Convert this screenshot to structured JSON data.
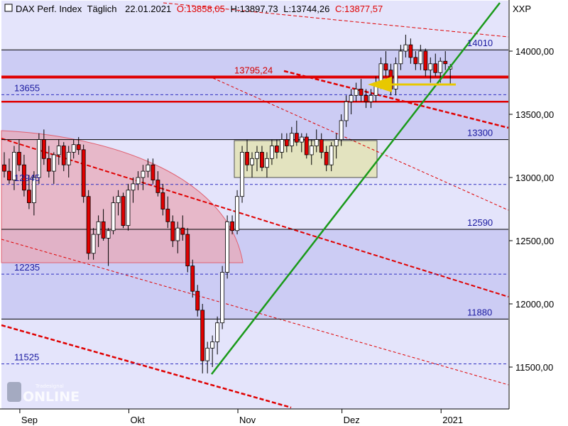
{
  "header": {
    "instrument": "DAX Perf. Index",
    "interval": "Täglich",
    "date": "22.01.2021",
    "open": "O:13858,05",
    "high": "H:13897,73",
    "low": "L:13744,26",
    "close": "C:13877,57",
    "symbol": "XXP"
  },
  "watermark": {
    "small": "Tradesignal",
    "big": "ONLINE"
  },
  "colors": {
    "band": "#ccccf4",
    "band_alt": "#e4e4fb",
    "up_candle": "#ffffff",
    "down_candle": "#e00000",
    "trend": "#1a9a1a",
    "resistance": "#e00000",
    "arrow": "#e8c800",
    "box": "#e2e2b8",
    "arc": "#e8aab8"
  },
  "chart_data": {
    "type": "candlestick",
    "title": "DAX Perf. Index Täglich",
    "ylim": [
      11150,
      14400
    ],
    "y_ticks": [
      11500,
      12000,
      12500,
      13000,
      13500,
      14000
    ],
    "y_tick_labels": [
      "11500,00",
      "12000,00",
      "12500,00",
      "13000,00",
      "13500,00",
      "14000,00"
    ],
    "x_ticks": [
      "Sep",
      "Okt",
      "Nov",
      "Dez",
      "2021"
    ],
    "x_tick_index": [
      4,
      26,
      48,
      69,
      89
    ],
    "levels": [
      {
        "value": 14010,
        "label": "14010",
        "style": "solid"
      },
      {
        "value": 13795.24,
        "label": "13795,24",
        "style": "resistance"
      },
      {
        "value": 13655,
        "label": "13655",
        "style": "dashed"
      },
      {
        "value": 13600,
        "label": "",
        "style": "resistance"
      },
      {
        "value": 13300,
        "label": "13300",
        "style": "solid"
      },
      {
        "value": 12945,
        "label": "12945",
        "style": "dashed"
      },
      {
        "value": 12590,
        "label": "12590",
        "style": "solid"
      },
      {
        "value": 12235,
        "label": "12235",
        "style": "dashed"
      },
      {
        "value": 11880,
        "label": "11880",
        "style": "solid"
      },
      {
        "value": 11525,
        "label": "11525",
        "style": "dashed"
      }
    ],
    "candles": [
      [
        13100,
        13200,
        13000,
        13050
      ],
      [
        13050,
        13150,
        12950,
        12980
      ],
      [
        12980,
        13250,
        12900,
        13200
      ],
      [
        13200,
        13300,
        13050,
        13100
      ],
      [
        13100,
        13180,
        12850,
        12900
      ],
      [
        12900,
        13020,
        12750,
        12800
      ],
      [
        12800,
        13050,
        12700,
        13000
      ],
      [
        13000,
        13350,
        12950,
        13300
      ],
      [
        13300,
        13380,
        13100,
        13150
      ],
      [
        13150,
        13250,
        13000,
        13050
      ],
      [
        13050,
        13200,
        12950,
        13180
      ],
      [
        13180,
        13300,
        13100,
        13250
      ],
      [
        13250,
        13280,
        13050,
        13100
      ],
      [
        13100,
        13250,
        13000,
        13200
      ],
      [
        13200,
        13300,
        13150,
        13260
      ],
      [
        13260,
        13320,
        13180,
        13220
      ],
      [
        13220,
        13260,
        12800,
        12850
      ],
      [
        12850,
        12900,
        12350,
        12400
      ],
      [
        12400,
        12600,
        12350,
        12550
      ],
      [
        12550,
        12700,
        12450,
        12650
      ],
      [
        12650,
        12750,
        12500,
        12520
      ],
      [
        12520,
        12600,
        12300,
        12580
      ],
      [
        12580,
        12850,
        12550,
        12800
      ],
      [
        12800,
        12900,
        12700,
        12850
      ],
      [
        12850,
        12880,
        12600,
        12620
      ],
      [
        12620,
        12950,
        12580,
        12900
      ],
      [
        12900,
        13000,
        12800,
        12950
      ],
      [
        12950,
        13050,
        12900,
        13000
      ],
      [
        13000,
        13100,
        12900,
        13050
      ],
      [
        13050,
        13150,
        13000,
        13100
      ],
      [
        13100,
        13150,
        12950,
        12980
      ],
      [
        12980,
        13050,
        12850,
        12880
      ],
      [
        12880,
        12950,
        12700,
        12750
      ],
      [
        12750,
        12850,
        12600,
        12650
      ],
      [
        12650,
        12700,
        12450,
        12500
      ],
      [
        12500,
        12650,
        12400,
        12600
      ],
      [
        12600,
        12700,
        12500,
        12550
      ],
      [
        12550,
        12600,
        12250,
        12300
      ],
      [
        12300,
        12350,
        12050,
        12100
      ],
      [
        12100,
        12150,
        11900,
        11950
      ],
      [
        11950,
        12000,
        11450,
        11550
      ],
      [
        11550,
        11700,
        11450,
        11650
      ],
      [
        11650,
        11750,
        11500,
        11700
      ],
      [
        11700,
        11900,
        11600,
        11850
      ],
      [
        11850,
        12300,
        11800,
        12250
      ],
      [
        12250,
        12700,
        12200,
        12650
      ],
      [
        12650,
        12700,
        12550,
        12580
      ],
      [
        12580,
        12900,
        12550,
        12850
      ],
      [
        12850,
        13250,
        12800,
        13200
      ],
      [
        13200,
        13300,
        13050,
        13100
      ],
      [
        13100,
        13200,
        13000,
        13150
      ],
      [
        13150,
        13250,
        13050,
        13200
      ],
      [
        13200,
        13250,
        13050,
        13080
      ],
      [
        13080,
        13200,
        13000,
        13150
      ],
      [
        13150,
        13300,
        13100,
        13250
      ],
      [
        13250,
        13300,
        13150,
        13200
      ],
      [
        13200,
        13350,
        13150,
        13300
      ],
      [
        13300,
        13350,
        13200,
        13250
      ],
      [
        13250,
        13400,
        13200,
        13350
      ],
      [
        13350,
        13450,
        13250,
        13280
      ],
      [
        13280,
        13350,
        13200,
        13320
      ],
      [
        13320,
        13350,
        13150,
        13180
      ],
      [
        13180,
        13300,
        13100,
        13250
      ],
      [
        13250,
        13380,
        13200,
        13300
      ],
      [
        13300,
        13350,
        13150,
        13200
      ],
      [
        13200,
        13250,
        13050,
        13100
      ],
      [
        13100,
        13280,
        13050,
        13250
      ],
      [
        13250,
        13350,
        13150,
        13300
      ],
      [
        13300,
        13500,
        13250,
        13450
      ],
      [
        13450,
        13650,
        13400,
        13600
      ],
      [
        13600,
        13700,
        13500,
        13650
      ],
      [
        13650,
        13750,
        13600,
        13700
      ],
      [
        13700,
        13780,
        13600,
        13650
      ],
      [
        13650,
        13700,
        13550,
        13600
      ],
      [
        13600,
        13700,
        13550,
        13650
      ],
      [
        13650,
        13800,
        13600,
        13750
      ],
      [
        13750,
        13950,
        13700,
        13900
      ],
      [
        13900,
        14000,
        13800,
        13850
      ],
      [
        13850,
        13900,
        13650,
        13700
      ],
      [
        13700,
        13950,
        13650,
        13900
      ],
      [
        13900,
        14050,
        13850,
        14000
      ],
      [
        14000,
        14130,
        13950,
        14050
      ],
      [
        14050,
        14100,
        13900,
        13950
      ],
      [
        13950,
        14000,
        13850,
        13900
      ],
      [
        13900,
        14050,
        13850,
        14000
      ],
      [
        14000,
        14020,
        13800,
        13850
      ],
      [
        13850,
        13950,
        13750,
        13900
      ],
      [
        13900,
        13980,
        13800,
        13830
      ],
      [
        13830,
        13950,
        13750,
        13920
      ],
      [
        13920,
        14000,
        13850,
        13900
      ],
      [
        13858.05,
        13897.73,
        13744.26,
        13877.57
      ]
    ]
  }
}
